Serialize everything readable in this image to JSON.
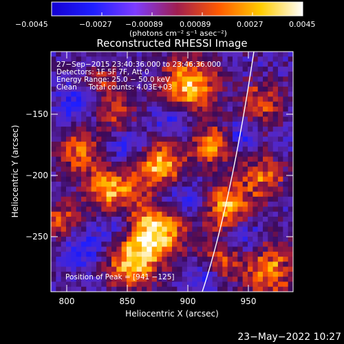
{
  "colorbar": {
    "ticks": [
      "−0.0045",
      "−0.0027",
      "−0.00089",
      "0.00089",
      "0.0027",
      "0.0045"
    ],
    "units_label": "(photons cm⁻² s⁻¹ asec⁻²)",
    "colormap": [
      "#1400d2",
      "#1f1fff",
      "#7d3cff",
      "#a01e50",
      "#ff5a00",
      "#ffcc00",
      "#ffffff"
    ]
  },
  "figure": {
    "title": "Reconstructed RHESSI Image",
    "xlabel": "Heliocentric X (arcsec)",
    "ylabel": "Heliocentric Y (arcsec)",
    "x_ticks": [
      "800",
      "850",
      "900",
      "950"
    ],
    "y_ticks": [
      "−150",
      "−200",
      "−250"
    ],
    "annotations": [
      "27−Sep−2015 23:40:36.000 to 23:46:36.000",
      "Detectors: 1F 5F 7F, Att 0",
      "Energy Range: 25.0 − 50.0 keV",
      "Clean     Total counts: 4.03E+03"
    ],
    "peak_label": "Position of Peak = [941 −125]",
    "timestamp": "23−May−2022 10:27",
    "limb_color": "#ffffff",
    "frame_color": "#ffffff"
  }
}
